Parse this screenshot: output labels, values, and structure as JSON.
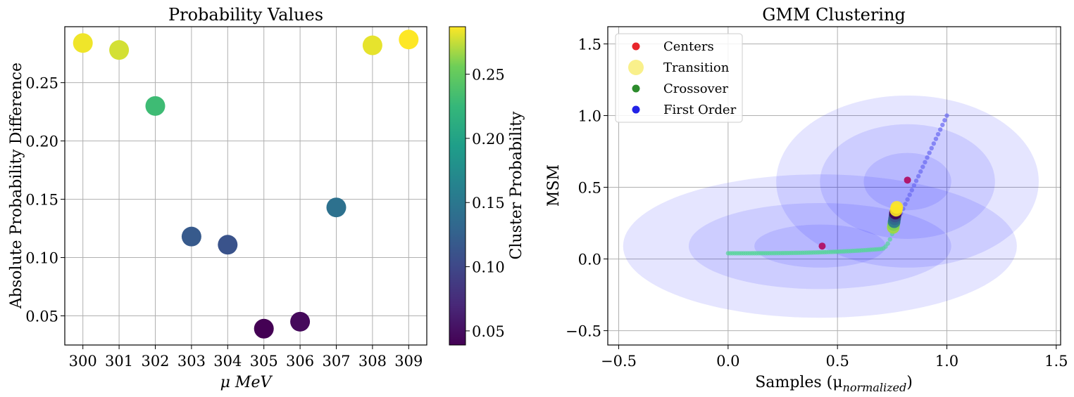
{
  "chart_data": [
    {
      "type": "scatter",
      "title": "Probability Values",
      "xlabel": "μ MeV",
      "ylabel": "Absolute Probability Difference",
      "x": [
        300,
        301,
        302,
        303,
        304,
        305,
        306,
        307,
        308,
        309
      ],
      "y": [
        0.284,
        0.278,
        0.23,
        0.118,
        0.111,
        0.039,
        0.045,
        0.143,
        0.282,
        0.287
      ],
      "color_values": [
        0.284,
        0.278,
        0.23,
        0.118,
        0.111,
        0.039,
        0.045,
        0.143,
        0.282,
        0.287
      ],
      "xticks": [
        300,
        301,
        302,
        303,
        304,
        305,
        306,
        307,
        308,
        309
      ],
      "yticks": [
        0.05,
        0.1,
        0.15,
        0.2,
        0.25
      ],
      "xlim": [
        299.5,
        309.5
      ],
      "ylim": [
        0.025,
        0.298
      ],
      "grid": true,
      "colorbar": {
        "label": "Cluster Probability",
        "colormap": "viridis",
        "range": [
          0.039,
          0.287
        ],
        "ticks": [
          0.05,
          0.1,
          0.15,
          0.2,
          0.25
        ]
      }
    },
    {
      "type": "scatter",
      "title": "GMM Clustering",
      "xlabel": "Samples (μ",
      "xlabel_subscript": "normalized",
      "xlabel_close": ")",
      "ylabel": "MSM",
      "xlim": [
        -0.55,
        1.52
      ],
      "ylim": [
        -0.6,
        1.62
      ],
      "xticks": [
        -0.5,
        0.0,
        0.5,
        1.0,
        1.5
      ],
      "yticks": [
        -0.5,
        0.0,
        0.5,
        1.0,
        1.5
      ],
      "grid": true,
      "legend_position": "top-left",
      "legend": [
        {
          "label": "Centers",
          "color": "#e8262b",
          "size": "small"
        },
        {
          "label": "Transition",
          "color": "#f7ec6e",
          "size": "large"
        },
        {
          "label": "Crossover",
          "color": "#2c8b2c",
          "size": "small"
        },
        {
          "label": "First Order",
          "color": "#2323e6",
          "size": "small"
        }
      ],
      "centers": [
        {
          "x": 0.43,
          "y": 0.09
        },
        {
          "x": 0.82,
          "y": 0.55
        }
      ],
      "ellipses": [
        {
          "cx": 0.42,
          "cy": 0.09,
          "width": 1.8,
          "height": 1.0
        },
        {
          "cx": 0.42,
          "cy": 0.09,
          "width": 1.2,
          "height": 0.6
        },
        {
          "cx": 0.42,
          "cy": 0.09,
          "width": 0.6,
          "height": 0.3
        },
        {
          "cx": 0.82,
          "cy": 0.54,
          "width": 1.2,
          "height": 1.2
        },
        {
          "cx": 0.82,
          "cy": 0.54,
          "width": 0.8,
          "height": 0.8
        },
        {
          "cx": 0.82,
          "cy": 0.54,
          "width": 0.4,
          "height": 0.4
        }
      ],
      "colors": {
        "ellipse_fill": "#0000ff",
        "crossover_points": "#57d49a",
        "first_order_points": "#6d6df2"
      },
      "transition_points": [
        {
          "x": 0.755,
          "y": 0.22,
          "color": "#a0da39"
        },
        {
          "x": 0.757,
          "y": 0.24,
          "color": "#7ad151"
        },
        {
          "x": 0.759,
          "y": 0.26,
          "color": "#2a788e"
        },
        {
          "x": 0.761,
          "y": 0.28,
          "color": "#31688e"
        },
        {
          "x": 0.763,
          "y": 0.3,
          "color": "#3b528b"
        },
        {
          "x": 0.765,
          "y": 0.32,
          "color": "#440154"
        },
        {
          "x": 0.768,
          "y": 0.34,
          "color": "#fde725"
        },
        {
          "x": 0.771,
          "y": 0.36,
          "color": "#fde725"
        }
      ]
    }
  ]
}
